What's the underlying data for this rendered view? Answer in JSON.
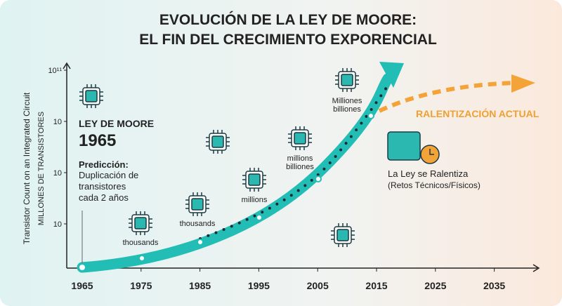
{
  "title": [
    "EVOLUCIÓN DE LA LEY DE MOORE:",
    "EL FIN DEL CRECIMIENTO EXPORENCIAL"
  ],
  "axes": {
    "y_label_1": "Transistor Count on an Integrated Circuit",
    "y_label_2": "MILLONES DE TRANSISTORES",
    "y_ticks": [
      "10¹¹",
      "10",
      "10",
      "10"
    ],
    "x_ticks": [
      "1965",
      "1975",
      "1985",
      "1995",
      "2005",
      "2015",
      "2025",
      "2035"
    ]
  },
  "moore_box": {
    "title": "LEY DE MOORE",
    "year": "1965",
    "prediction_label": "Predicción:",
    "prediction_text": [
      "Duplicación de",
      "transistores",
      "cada 2 años"
    ]
  },
  "chip_labels": [
    [
      "thousands"
    ],
    [
      "thousands"
    ],
    [
      "millions"
    ],
    [
      "millions",
      "billiones"
    ],
    [
      "Milliones",
      "billiones"
    ]
  ],
  "slowdown": {
    "label": "RALENTIZACIÓN ACTUAL",
    "title": "La Ley se Ralentiza",
    "subtitle": "(Retos Técnicos/Físicos)"
  }
}
